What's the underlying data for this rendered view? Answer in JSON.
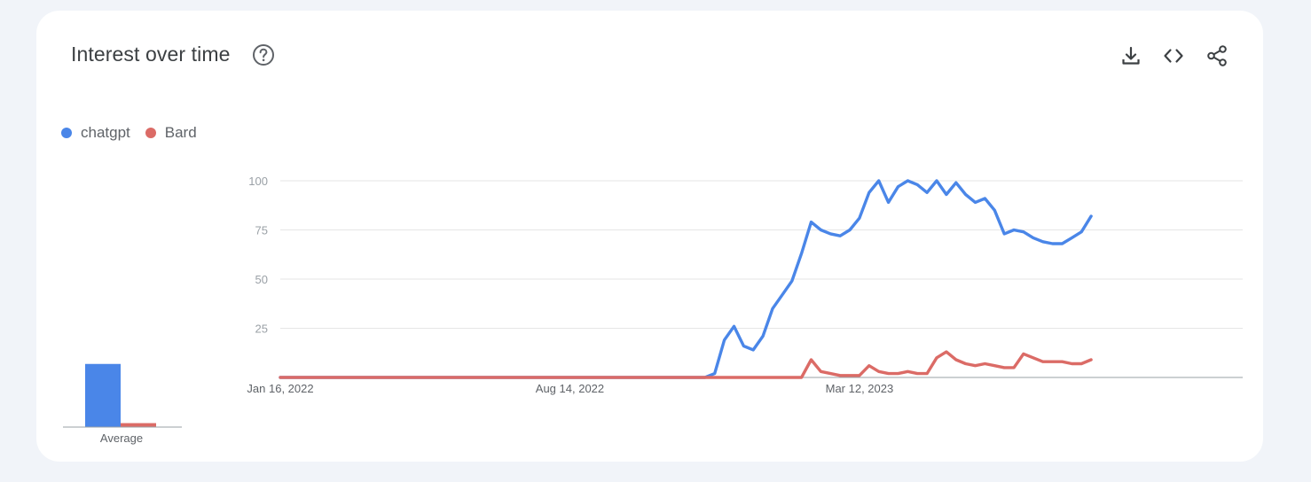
{
  "widget": {
    "title": "Interest over time",
    "help_icon": "help-circle-icon",
    "actions": [
      {
        "name": "download-icon"
      },
      {
        "name": "embed-code-icon"
      },
      {
        "name": "share-icon"
      }
    ]
  },
  "legend": [
    {
      "label": "chatgpt",
      "color": "#4a86e8"
    },
    {
      "label": "Bard",
      "color": "#db6b66"
    }
  ],
  "chart_data": [
    {
      "type": "bar",
      "categories": [
        "Average"
      ],
      "series": [
        {
          "name": "chatgpt",
          "values": [
            32
          ],
          "color": "#4a86e8"
        },
        {
          "name": "Bard",
          "values": [
            2
          ],
          "color": "#db6b66"
        }
      ],
      "ylim": [
        0,
        100
      ],
      "xlabel": "",
      "ylabel": ""
    },
    {
      "type": "line",
      "title": "",
      "xlabel": "",
      "ylabel": "",
      "ylim": [
        0,
        100
      ],
      "yticks": [
        25,
        50,
        75,
        100
      ],
      "x_tick_labels": [
        "Jan 16, 2022",
        "Aug 14, 2022",
        "Mar 12, 2023"
      ],
      "x_start": "2022-01-16",
      "x_end": "2023-12-31",
      "x_tick_dates": [
        "2022-01-16",
        "2022-08-14",
        "2023-03-12"
      ],
      "grid": true,
      "series": [
        {
          "name": "chatgpt",
          "color": "#4a86e8",
          "points": [
            [
              "2022-01-16",
              0
            ],
            [
              "2022-11-20",
              0
            ],
            [
              "2022-11-27",
              2
            ],
            [
              "2022-12-04",
              19
            ],
            [
              "2022-12-11",
              26
            ],
            [
              "2022-12-18",
              16
            ],
            [
              "2022-12-25",
              14
            ],
            [
              "2023-01-01",
              21
            ],
            [
              "2023-01-08",
              35
            ],
            [
              "2023-01-15",
              42
            ],
            [
              "2023-01-22",
              49
            ],
            [
              "2023-01-29",
              63
            ],
            [
              "2023-02-05",
              79
            ],
            [
              "2023-02-12",
              75
            ],
            [
              "2023-02-19",
              73
            ],
            [
              "2023-02-26",
              72
            ],
            [
              "2023-03-05",
              75
            ],
            [
              "2023-03-12",
              81
            ],
            [
              "2023-03-19",
              94
            ],
            [
              "2023-03-26",
              100
            ],
            [
              "2023-04-02",
              89
            ],
            [
              "2023-04-09",
              97
            ],
            [
              "2023-04-16",
              100
            ],
            [
              "2023-04-23",
              98
            ],
            [
              "2023-04-30",
              94
            ],
            [
              "2023-05-07",
              100
            ],
            [
              "2023-05-14",
              93
            ],
            [
              "2023-05-21",
              99
            ],
            [
              "2023-05-28",
              93
            ],
            [
              "2023-06-04",
              89
            ],
            [
              "2023-06-11",
              91
            ],
            [
              "2023-06-18",
              85
            ],
            [
              "2023-06-25",
              73
            ],
            [
              "2023-07-02",
              75
            ],
            [
              "2023-07-09",
              74
            ],
            [
              "2023-07-16",
              71
            ],
            [
              "2023-07-23",
              69
            ],
            [
              "2023-07-30",
              68
            ],
            [
              "2023-08-06",
              68
            ],
            [
              "2023-08-13",
              71
            ],
            [
              "2023-08-20",
              74
            ],
            [
              "2023-08-27",
              82
            ]
          ]
        },
        {
          "name": "Bard",
          "color": "#db6b66",
          "points": [
            [
              "2022-01-16",
              0
            ],
            [
              "2023-01-29",
              0
            ],
            [
              "2023-02-05",
              9
            ],
            [
              "2023-02-12",
              3
            ],
            [
              "2023-02-19",
              2
            ],
            [
              "2023-02-26",
              1
            ],
            [
              "2023-03-05",
              1
            ],
            [
              "2023-03-12",
              1
            ],
            [
              "2023-03-19",
              6
            ],
            [
              "2023-03-26",
              3
            ],
            [
              "2023-04-02",
              2
            ],
            [
              "2023-04-09",
              2
            ],
            [
              "2023-04-16",
              3
            ],
            [
              "2023-04-23",
              2
            ],
            [
              "2023-04-30",
              2
            ],
            [
              "2023-05-07",
              10
            ],
            [
              "2023-05-14",
              13
            ],
            [
              "2023-05-21",
              9
            ],
            [
              "2023-05-28",
              7
            ],
            [
              "2023-06-04",
              6
            ],
            [
              "2023-06-11",
              7
            ],
            [
              "2023-06-18",
              6
            ],
            [
              "2023-06-25",
              5
            ],
            [
              "2023-07-02",
              5
            ],
            [
              "2023-07-09",
              12
            ],
            [
              "2023-07-16",
              10
            ],
            [
              "2023-07-23",
              8
            ],
            [
              "2023-07-30",
              8
            ],
            [
              "2023-08-06",
              8
            ],
            [
              "2023-08-13",
              7
            ],
            [
              "2023-08-20",
              7
            ],
            [
              "2023-08-27",
              9
            ]
          ]
        }
      ]
    }
  ]
}
